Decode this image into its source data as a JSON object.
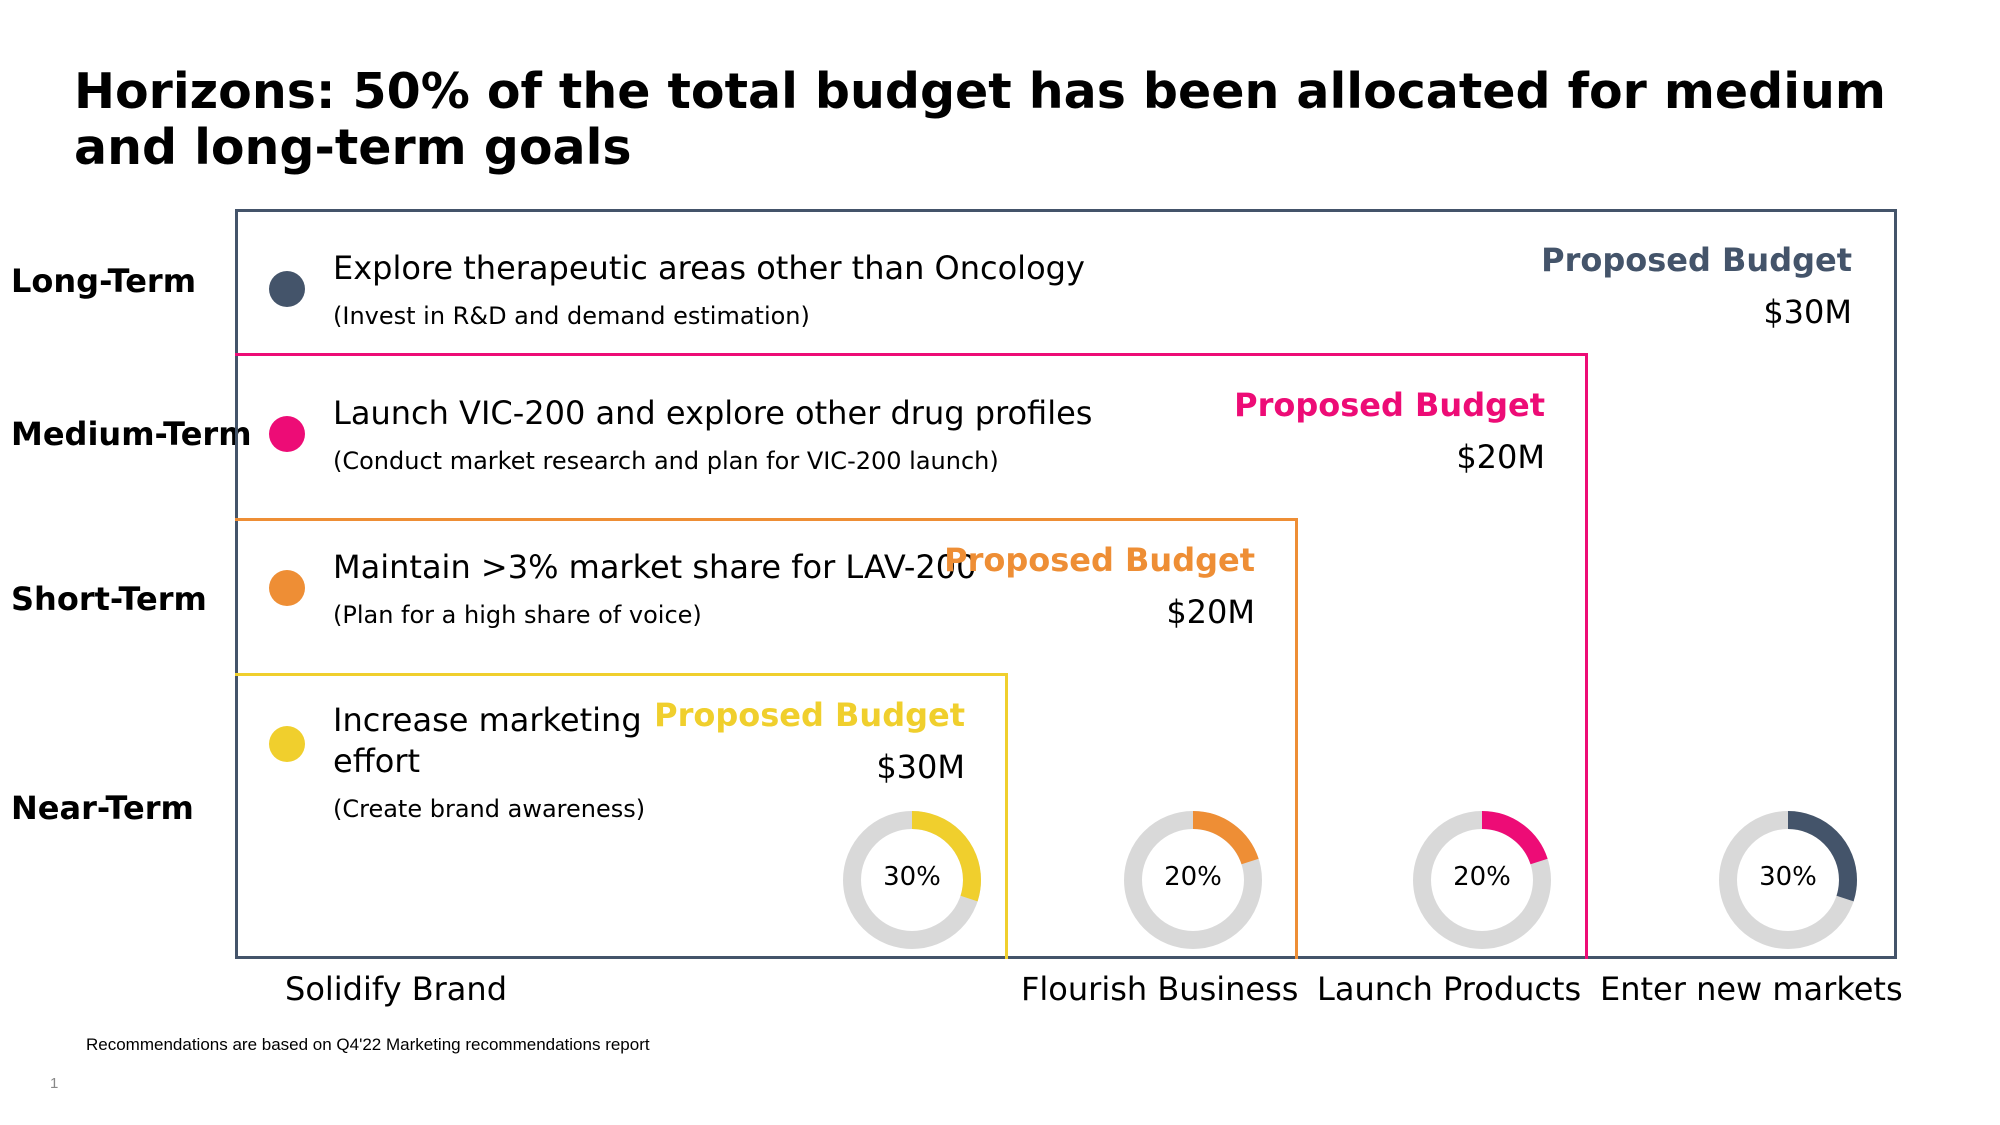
{
  "title": "Horizons: 50% of the total budget has been allocated for medium and long-term goals",
  "colors": {
    "long_term": "#44546A",
    "medium_term": "#ED0C76",
    "short_term": "#EE8E35",
    "near_term": "#F0CF2D",
    "track": "#D9D9D9"
  },
  "rows": [
    {
      "label": "Long-Term"
    },
    {
      "label": "Medium-Term"
    },
    {
      "label": "Short-Term"
    },
    {
      "label": "Near-Term"
    }
  ],
  "goals": [
    {
      "title": "Explore therapeutic areas other than Oncology",
      "detail": "(Invest in R&D and demand estimation)",
      "budget_label": "Proposed Budget",
      "budget_value": "$30M"
    },
    {
      "title": "Launch VIC-200 and explore other drug profiles",
      "detail": "(Conduct market research and plan for VIC-200 launch)",
      "budget_label": "Proposed Budget",
      "budget_value": "$20M"
    },
    {
      "title": "Maintain >3% market share for LAV-200",
      "detail": "(Plan for a high share of voice)",
      "budget_label": "Proposed Budget",
      "budget_value": "$20M"
    },
    {
      "title_line1": "Increase marketing",
      "title_line2": "effort",
      "detail": "(Create brand awareness)",
      "budget_label": "Proposed Budget",
      "budget_value": "$30M"
    }
  ],
  "donuts": [
    {
      "label": "30%",
      "value": 30,
      "color": "#F0CF2D"
    },
    {
      "label": "20%",
      "value": 20,
      "color": "#EE8E35"
    },
    {
      "label": "20%",
      "value": 20,
      "color": "#ED0C76"
    },
    {
      "label": "30%",
      "value": 30,
      "color": "#44546A"
    }
  ],
  "x_labels": [
    "Solidify Brand",
    "Flourish Business",
    "Launch Products",
    "Enter new markets"
  ],
  "footnote": "Recommendations are based on Q4'22 Marketing recommendations report",
  "page_number": "1"
}
